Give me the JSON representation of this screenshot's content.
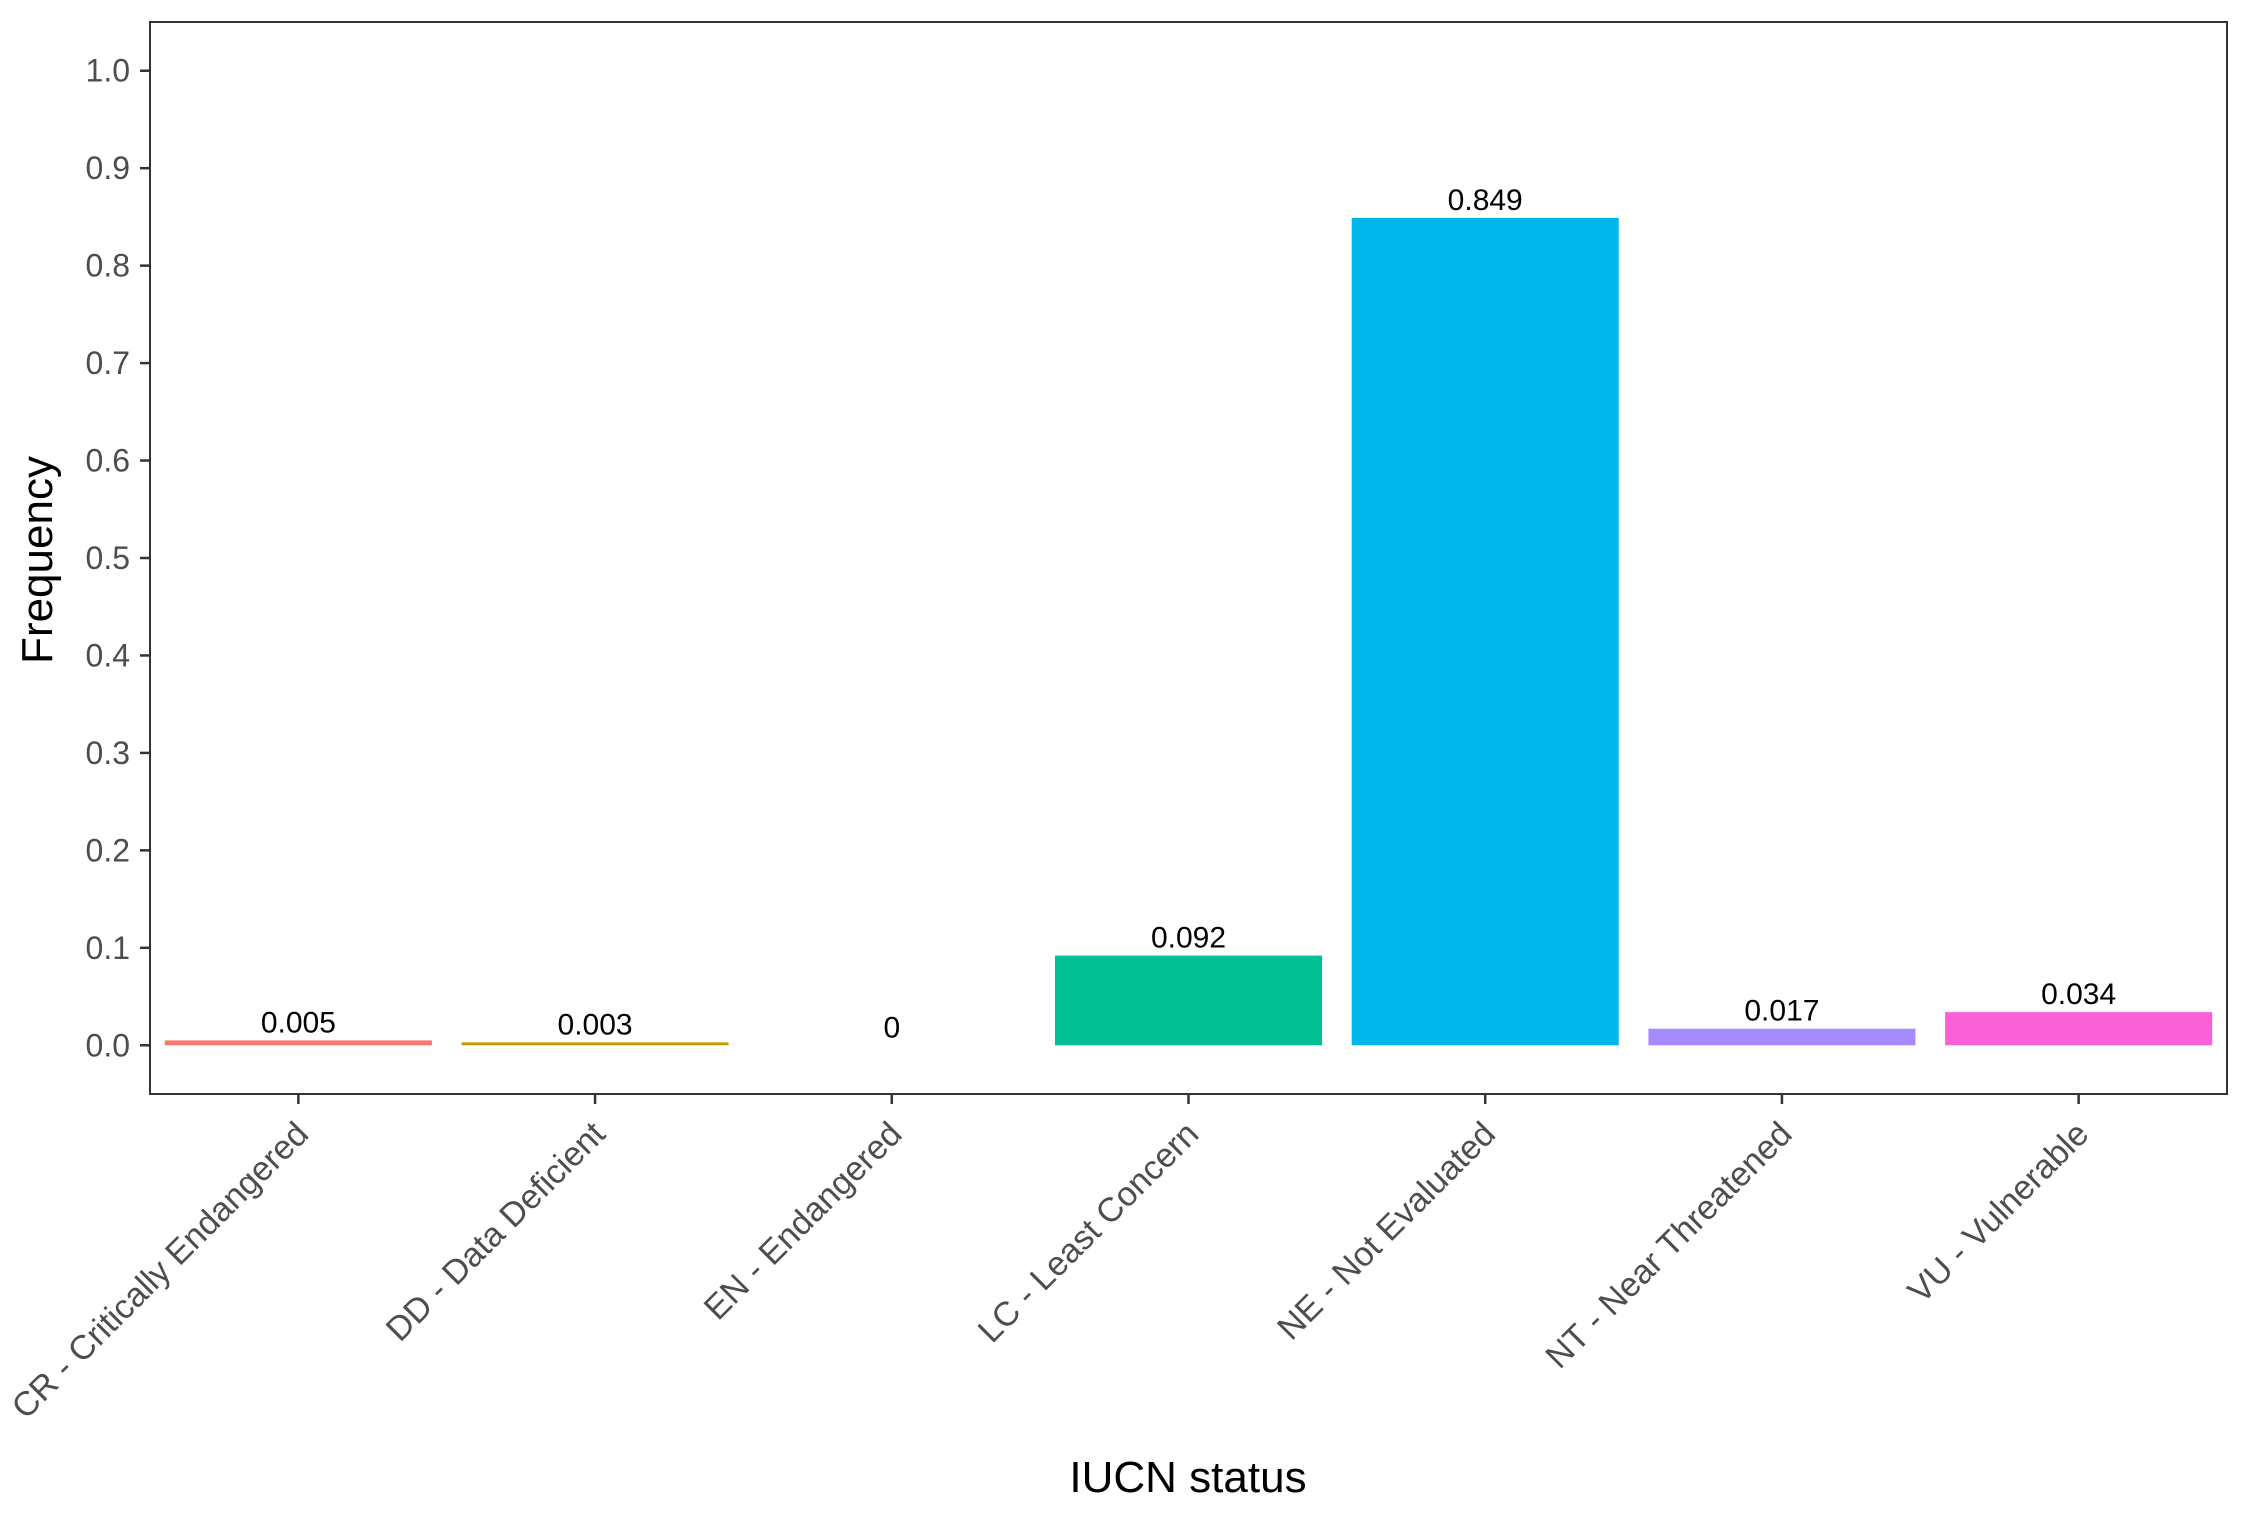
{
  "chart_data": {
    "type": "bar",
    "title": "",
    "xlabel": "IUCN status",
    "ylabel": "Frequency",
    "categories": [
      "CR - Critically Endangered",
      "DD - Data Deficient",
      "EN - Endangered",
      "LC - Least Concern",
      "NE - Not Evaluated",
      "NT - Near Threatened",
      "VU - Vulnerable"
    ],
    "values": [
      0.005,
      0.003,
      0,
      0.092,
      0.849,
      0.017,
      0.034
    ],
    "data_labels": [
      "0.005",
      "0.003",
      "0",
      "0.092",
      "0.849",
      "0.017",
      "0.034"
    ],
    "colors": [
      "#F8766D",
      "#C49A00",
      "#53B400",
      "#00C094",
      "#00B6EB",
      "#A58AFF",
      "#FB61D7"
    ],
    "y_ticks": [
      "0.0",
      "0.1",
      "0.2",
      "0.3",
      "0.4",
      "0.5",
      "0.6",
      "0.7",
      "0.8",
      "0.9",
      "1.0"
    ],
    "ylim": [
      -0.05,
      1.05
    ],
    "grid": false,
    "legend": "none"
  }
}
